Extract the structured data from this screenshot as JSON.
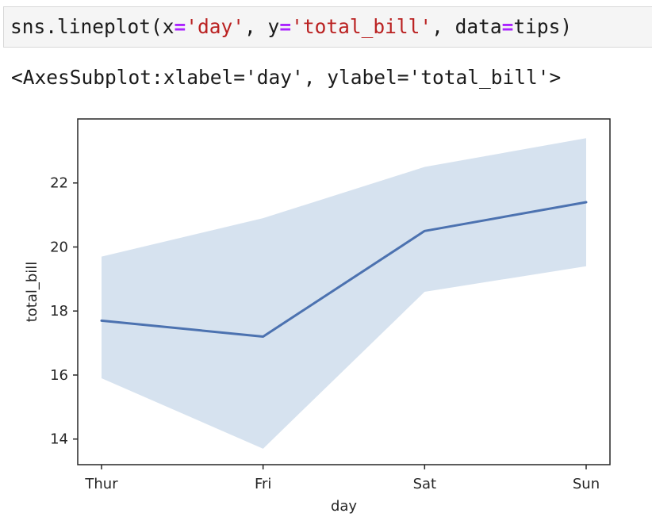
{
  "code_cell": {
    "tokens": [
      {
        "text": "sns.lineplot(x",
        "kind": "plain"
      },
      {
        "text": "=",
        "kind": "op"
      },
      {
        "text": "'day'",
        "kind": "str"
      },
      {
        "text": ", y",
        "kind": "plain"
      },
      {
        "text": "=",
        "kind": "op"
      },
      {
        "text": "'total_bill'",
        "kind": "str"
      },
      {
        "text": ", data",
        "kind": "plain"
      },
      {
        "text": "=",
        "kind": "op"
      },
      {
        "text": "tips)",
        "kind": "plain"
      }
    ]
  },
  "output": {
    "text": "<AxesSubplot:xlabel='day', ylabel='total_bill'>"
  },
  "colors": {
    "line": "#4c72b0",
    "band": "#c8d8ea",
    "axes_frame": "#262626",
    "code_bg": "#f5f5f5",
    "string": "#ba2121",
    "operator": "#aa22ff"
  },
  "chart_data": {
    "type": "line",
    "title": "",
    "xlabel": "day",
    "ylabel": "total_bill",
    "categories": [
      "Thur",
      "Fri",
      "Sat",
      "Sun"
    ],
    "values": [
      17.7,
      17.2,
      20.5,
      21.4
    ],
    "ci_lower": [
      15.9,
      13.7,
      18.6,
      19.4
    ],
    "ci_upper": [
      19.7,
      20.9,
      22.5,
      23.4
    ],
    "ylim": [
      13.2,
      24.0
    ],
    "yticks": [
      14,
      16,
      18,
      20,
      22
    ],
    "grid": false,
    "legend": "none"
  }
}
